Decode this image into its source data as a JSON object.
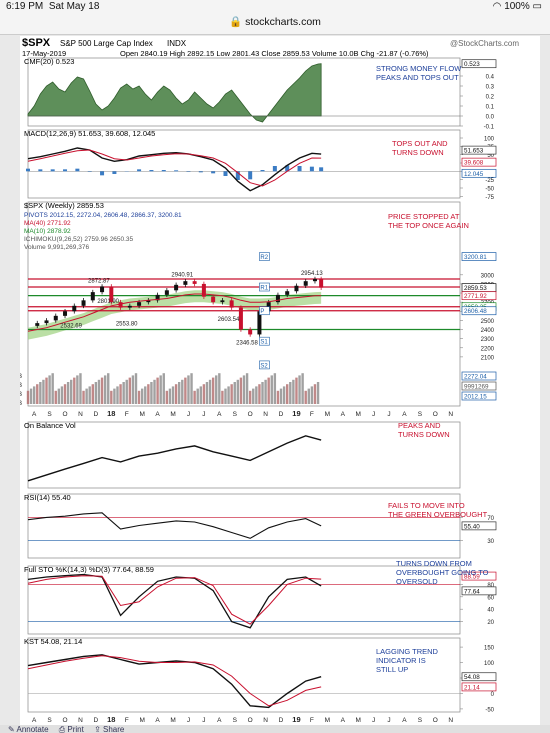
{
  "status": {
    "time": "6:19 PM",
    "date": "Sat May 18",
    "battery": "100%"
  },
  "browser": {
    "url": "stockcharts.com"
  },
  "header": {
    "symbol": "$SPX",
    "name": "S&P 500 Large Cap Index",
    "exchange": "INDX",
    "copyright": "@StockCharts.com",
    "date": "17-May-2019",
    "ohlc": "Open 2840.19  High 2892.15  Low 2801.43  Close 2859.53  Volume 10.0B  Chg -21.87 (-0.76%)"
  },
  "colors": {
    "up": "#111111",
    "down": "#c8102e",
    "green": "#1d8a2a",
    "cloud": "#9ed27f",
    "blue": "#1d5fa8",
    "note": "#c8102e",
    "note_blue": "#1d3f9a"
  },
  "x_months": [
    "A",
    "S",
    "O",
    "N",
    "D",
    "18",
    "F",
    "M",
    "A",
    "M",
    "J",
    "J",
    "A",
    "S",
    "O",
    "N",
    "D",
    "19",
    "F",
    "M",
    "A",
    "M",
    "J",
    "J",
    "A",
    "S",
    "O",
    "N"
  ],
  "panels": {
    "cmf": {
      "label": "CMF(20) 0.523",
      "note": "STRONG MONEY FLOW PEAKS AND TOPS OUT",
      "ticks": [
        "0.4",
        "0.3",
        "0.2",
        "0.1",
        "0.0",
        "-0.1"
      ],
      "last": "0.523"
    },
    "macd": {
      "label": "MACD(12,26,9) 51.653, 39.608, 12.045",
      "note": "TOPS OUT AND TURNS DOWN",
      "ticks": [
        "100",
        "75",
        "50",
        "25",
        "0",
        "-25",
        "-50",
        "-75"
      ],
      "last": [
        "51.653",
        "39.608",
        "12.045"
      ]
    },
    "price": {
      "label": "$SPX (Weekly) 2859.53",
      "pivots": "PIVOTS 2012.15, 2272.04, 2606.48, 2866.37, 3200.81",
      "ma40": "MA(40) 2771.92",
      "ma10": "MA(10) 2878.92",
      "ichimoku": "ICHIMOKU(9,26,52) 2759.96 2650.35",
      "volume": "Volume 9,991,269,376",
      "note": "PRICE STOPPED AT THE TOP ONCE AGAIN",
      "ticks": [
        "3000",
        "2900",
        "2800",
        "2700",
        "2600",
        "2500",
        "2400",
        "2300",
        "2200",
        "2100"
      ],
      "price_labels": [
        "2872.87",
        "2940.91",
        "2954.13",
        "2801.90",
        "2532.69",
        "2553.80",
        "2603.54",
        "2346.58"
      ],
      "pivot_tags": [
        "R2",
        "R1",
        "P",
        "S1",
        "S2"
      ],
      "right_tags": [
        "3200.81",
        "2859.53",
        "2771.92",
        "2650.35",
        "2606.48",
        "2272.04",
        "9991269",
        "2012.15"
      ],
      "vol_ticks": [
        "20B",
        "15B",
        "10B",
        "5B"
      ]
    },
    "obv": {
      "label": "On Balance Vol",
      "note": "PEAKS AND TURNS DOWN"
    },
    "rsi": {
      "label": "RSI(14) 55.40",
      "note": "FAILS TO MOVE INTO THE GREEN OVERBOUGHT",
      "ticks": [
        "70",
        "30"
      ],
      "last": "55.40"
    },
    "sto": {
      "label": "Full STO %K(14,3) %D(3) 77.64, 88.59",
      "note": "TURNS DOWN FROM OVERBOUGHT GOING TO OVERSOLD",
      "ticks": [
        "80",
        "60",
        "40",
        "20"
      ],
      "last": [
        "88.59",
        "77.64"
      ]
    },
    "kst": {
      "label": "KST 54.08, 21.14",
      "note": "LAGGING TREND INDICATOR IS STILL UP",
      "ticks": [
        "150",
        "100",
        "50",
        "0",
        "-50"
      ],
      "last": [
        "54.08",
        "21.14"
      ]
    }
  },
  "chart_data": [
    {
      "type": "area",
      "title": "CMF(20) 0.523",
      "x": [
        0,
        2,
        4,
        6,
        8,
        10,
        12,
        14,
        16,
        18,
        20,
        22,
        24,
        26,
        28,
        30,
        32,
        34,
        36,
        38,
        40,
        42,
        44,
        46,
        48,
        50,
        52,
        54,
        56,
        58,
        60,
        62,
        64,
        66,
        68,
        70,
        72,
        74,
        76,
        78,
        80,
        82,
        84,
        86,
        88,
        90,
        92,
        94,
        95
      ],
      "values": [
        0.02,
        0.1,
        0.22,
        0.3,
        0.34,
        0.27,
        0.24,
        0.33,
        0.39,
        0.37,
        0.25,
        0.12,
        0.06,
        0.1,
        0.18,
        0.28,
        0.32,
        0.27,
        0.3,
        0.22,
        0.16,
        0.24,
        0.3,
        0.26,
        0.18,
        0.12,
        0.16,
        0.24,
        0.18,
        0.12,
        0.08,
        0.14,
        0.22,
        0.26,
        0.18,
        0.1,
        0.02,
        -0.04,
        -0.06,
        0.02,
        0.1,
        0.18,
        0.26,
        0.32,
        0.38,
        0.45,
        0.5,
        0.52,
        0.523
      ],
      "ylim": [
        -0.1,
        0.5
      ]
    },
    {
      "type": "line",
      "title": "MACD(12,26,9)",
      "x": [
        0,
        4,
        8,
        12,
        16,
        20,
        24,
        28,
        32,
        36,
        40,
        44,
        48,
        52,
        56,
        60,
        64,
        68,
        72,
        76,
        80,
        84,
        88,
        92,
        95
      ],
      "series": [
        {
          "name": "MACD",
          "values": [
            38,
            44,
            52,
            60,
            70,
            64,
            40,
            30,
            35,
            46,
            50,
            54,
            56,
            52,
            44,
            34,
            10,
            -30,
            -58,
            -40,
            -10,
            18,
            40,
            54,
            51.653
          ]
        },
        {
          "name": "Signal",
          "values": [
            30,
            38,
            46,
            54,
            62,
            64,
            52,
            38,
            34,
            40,
            46,
            50,
            53,
            52,
            47,
            40,
            24,
            -4,
            -34,
            -44,
            -26,
            0,
            24,
            40,
            39.608
          ]
        }
      ],
      "ylim": [
        -80,
        100
      ]
    },
    {
      "type": "line",
      "title": "$SPX (Weekly) 2859.53",
      "x": [
        0,
        3,
        6,
        9,
        12,
        15,
        18,
        21,
        24,
        27,
        30,
        33,
        36,
        39,
        42,
        45,
        48,
        51,
        54,
        57,
        60,
        63,
        66,
        69,
        72,
        75,
        78,
        81,
        84,
        87,
        90,
        93,
        95
      ],
      "series": [
        {
          "name": "$SPX",
          "values": [
            2440,
            2470,
            2500,
            2550,
            2600,
            2660,
            2720,
            2810,
            2872,
            2700,
            2640,
            2660,
            2700,
            2720,
            2780,
            2830,
            2890,
            2930,
            2900,
            2760,
            2700,
            2720,
            2640,
            2400,
            2346,
            2600,
            2700,
            2780,
            2820,
            2880,
            2930,
            2954,
            2859
          ]
        },
        {
          "name": "MA(40)",
          "values": [
            2380,
            2400,
            2420,
            2450,
            2480,
            2510,
            2540,
            2580,
            2620,
            2660,
            2680,
            2700,
            2710,
            2720,
            2730,
            2740,
            2760,
            2780,
            2790,
            2790,
            2780,
            2770,
            2750,
            2720,
            2700,
            2700,
            2705,
            2720,
            2740,
            2750,
            2760,
            2770,
            2772
          ]
        }
      ],
      "ylim": [
        2000,
        3250
      ]
    },
    {
      "type": "line",
      "title": "On Balance Vol",
      "x": [
        0,
        6,
        12,
        18,
        24,
        30,
        36,
        42,
        48,
        54,
        60,
        66,
        72,
        78,
        84,
        90,
        95
      ],
      "values": [
        10,
        18,
        26,
        34,
        42,
        36,
        44,
        48,
        54,
        58,
        50,
        44,
        38,
        50,
        62,
        72,
        66
      ]
    },
    {
      "type": "line",
      "title": "RSI(14) 55.40",
      "x": [
        0,
        6,
        12,
        18,
        24,
        30,
        36,
        42,
        48,
        54,
        60,
        66,
        72,
        78,
        84,
        90,
        95
      ],
      "values": [
        66,
        70,
        72,
        76,
        78,
        50,
        56,
        60,
        64,
        62,
        54,
        44,
        34,
        52,
        62,
        68,
        55.4
      ],
      "ylim": [
        0,
        100
      ]
    },
    {
      "type": "line",
      "title": "Full STO %K(14,3) %D(3)",
      "x": [
        0,
        6,
        12,
        18,
        24,
        30,
        36,
        42,
        48,
        54,
        60,
        66,
        72,
        78,
        84,
        90,
        95
      ],
      "series": [
        {
          "name": "%K",
          "values": [
            88,
            92,
            94,
            96,
            92,
            30,
            60,
            85,
            92,
            90,
            70,
            20,
            10,
            60,
            88,
            92,
            77.64
          ]
        },
        {
          "name": "%D",
          "values": [
            82,
            88,
            92,
            94,
            93,
            46,
            52,
            76,
            90,
            91,
            78,
            32,
            16,
            46,
            80,
            90,
            88.59
          ]
        }
      ],
      "ylim": [
        0,
        100
      ]
    },
    {
      "type": "line",
      "title": "KST",
      "x": [
        0,
        6,
        12,
        18,
        24,
        30,
        36,
        42,
        48,
        54,
        60,
        66,
        72,
        78,
        84,
        90,
        95
      ],
      "series": [
        {
          "name": "KST",
          "values": [
            90,
            100,
            110,
            120,
            125,
            110,
            95,
            100,
            105,
            100,
            80,
            30,
            -40,
            -45,
            0,
            40,
            54.08
          ]
        },
        {
          "name": "Signal",
          "values": [
            80,
            92,
            104,
            114,
            122,
            116,
            104,
            100,
            100,
            102,
            92,
            56,
            0,
            -40,
            -22,
            10,
            21.14
          ]
        }
      ]
    }
  ]
}
